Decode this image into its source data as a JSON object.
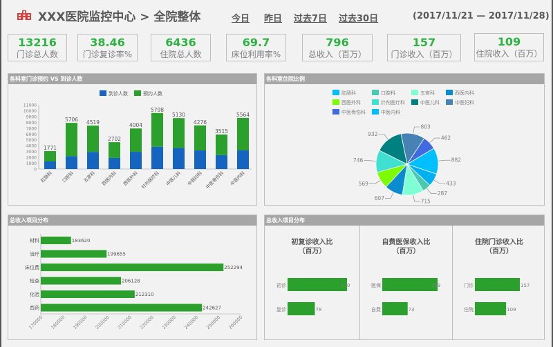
{
  "header": {
    "title": "XXX医院监控中心 > 全院整体",
    "nav": [
      "今日",
      "昨日",
      "过去7日",
      "过去30日"
    ],
    "date_range": "(2017/11/21 — 2017/11/28)",
    "logo_icon": "hospital-icon"
  },
  "kpis": [
    {
      "value": "13216",
      "label": "门诊总人数"
    },
    {
      "value": "38.46",
      "label": "门诊复诊率%"
    },
    {
      "value": "6436",
      "label": "住院总人数"
    },
    {
      "value": "69.7",
      "label": "床位利用率%"
    },
    {
      "value": "796",
      "label": "总收入（百万）"
    },
    {
      "value": "157",
      "label": "门诊收入（百万）"
    },
    {
      "value": "109",
      "label": "住院收入（百万）"
    }
  ],
  "colors": {
    "green": "#2ca02c",
    "blue": "#1565c0",
    "kpi_green": "#2db342",
    "panel_header": "#a6a6a6"
  },
  "panels": {
    "p1": "各科室门诊预约 VS 到诊人数",
    "p2": "各科室住院比例",
    "p3": "总收入项目分布",
    "p4": "总收入项目分布"
  },
  "chart_data": [
    {
      "type": "bar",
      "stacked": true,
      "title": "各科室门诊预约 VS 到诊人数",
      "categories": [
        "肛肠科",
        "口腔科",
        "五官科",
        "西医内科",
        "西医外科",
        "针剂医疗科",
        "中医儿科",
        "中医妇科",
        "中医骨伤科",
        "中医内科"
      ],
      "series": [
        {
          "name": "到诊人数",
          "color": "#1565c0",
          "values": [
            1300,
            2200,
            2930,
            1900,
            2950,
            3800,
            3600,
            3200,
            2400,
            3200
          ]
        },
        {
          "name": "预约人数",
          "color": "#2ca02c",
          "values": [
            1771,
            5706,
            4519,
            2702,
            4004,
            5798,
            5130,
            4276,
            3515,
            5564
          ]
        }
      ],
      "yticks": [
        0,
        1000,
        2000,
        3000,
        4000,
        5000,
        6000,
        7000,
        8000,
        9000,
        10000,
        11000
      ],
      "ylim": [
        0,
        11000
      ],
      "legend_position": "top"
    },
    {
      "type": "pie",
      "title": "各科室住院比例",
      "labels": [
        "中医妇科",
        "中医骨伤科",
        "肛肠科",
        "西医内科",
        "口腔科",
        "五官科",
        "中医内科",
        "西医外科",
        "针剂医疗科",
        "中医儿科"
      ],
      "values": [
        803,
        462,
        882,
        433,
        287,
        715,
        607,
        569,
        746,
        932
      ],
      "colors": [
        "#4682b4",
        "#4169e1",
        "#00bfff",
        "#00b0f0",
        "#48c9b0",
        "#7fffd4",
        "#0b8ccf",
        "#7cfc00",
        "#40e0d0",
        "#008080"
      ],
      "legend": [
        "肛肠科",
        "口腔科",
        "五官科",
        "西医内科",
        "西医外科",
        "针剂医疗科",
        "中医儿科",
        "中医妇科",
        "中医骨伤科",
        "中医内科"
      ],
      "legend_colors": [
        "#00bfff",
        "#48c9b0",
        "#7fffd4",
        "#0b8ccf",
        "#7cfc00",
        "#40e0d0",
        "#008080",
        "#4682b4",
        "#4169e1",
        "#00bfff"
      ]
    },
    {
      "type": "bar",
      "orientation": "horizontal",
      "title": "总收入项目分布",
      "categories": [
        "材料",
        "治疗",
        "床位费",
        "检查",
        "化验",
        "西药"
      ],
      "values": [
        183620,
        199655,
        252294,
        206128,
        212310,
        242627
      ],
      "xticks": [
        170000,
        180000,
        190000,
        200000,
        210000,
        220000,
        230000,
        240000,
        250000,
        260000
      ],
      "xlim": [
        170000,
        260000
      ]
    },
    {
      "type": "bar",
      "orientation": "horizontal",
      "title": "初复诊收入比（百万）",
      "categories": [
        "初诊",
        "复诊"
      ],
      "values": [
        170,
        78
      ]
    },
    {
      "type": "bar",
      "orientation": "horizontal",
      "title": "自费医保收入比（百万）",
      "categories": [
        "医保",
        "自费"
      ],
      "values": [
        159,
        73
      ]
    },
    {
      "type": "bar",
      "orientation": "horizontal",
      "title": "住院门诊收入比（百万）",
      "categories": [
        "门诊",
        "住院"
      ],
      "values": [
        157,
        109
      ]
    }
  ],
  "sub_titles": [
    {
      "line1": "初复诊收入比",
      "line2": "（百万）"
    },
    {
      "line1": "自费医保收入比",
      "line2": "（百万）"
    },
    {
      "line1": "住院门诊收入比",
      "line2": "（百万）"
    }
  ]
}
